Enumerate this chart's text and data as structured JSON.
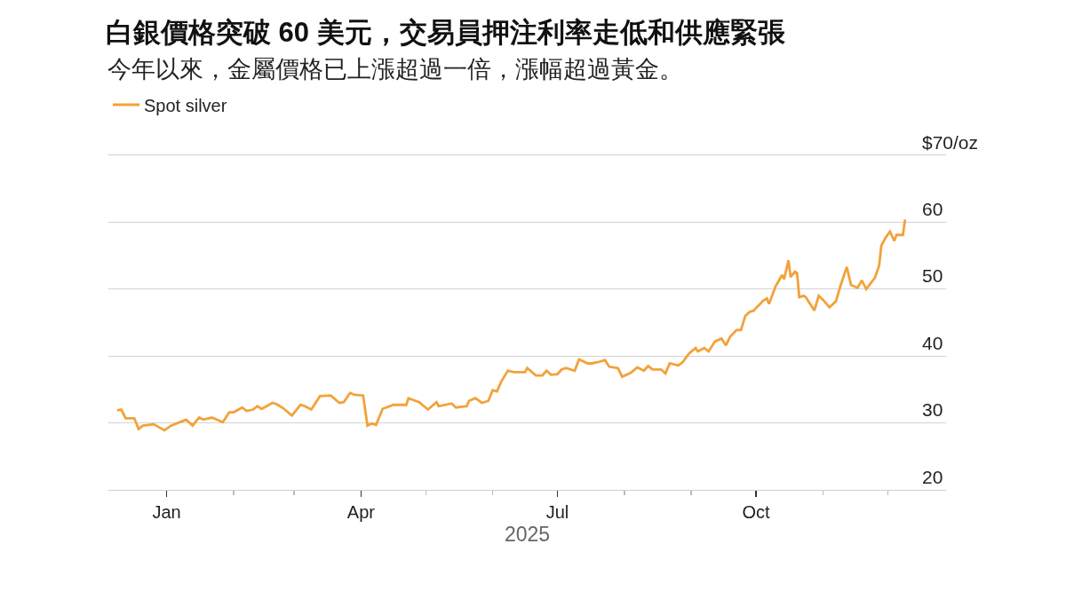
{
  "chart_data": {
    "type": "line",
    "title": "白銀價格突破 60 美元，交易員押注利率走低和供應緊張",
    "subtitle": "今年以來，金屬價格已上漲超過一倍，漲幅超過黃金。",
    "xlabel": "2025",
    "x": [
      "2024-12-09",
      "2024-12-11",
      "2024-12-13",
      "2024-12-17",
      "2024-12-19",
      "2024-12-21",
      "2024-12-26",
      "2024-12-31",
      "2025-01-03",
      "2025-01-10",
      "2025-01-13",
      "2025-01-16",
      "2025-01-18",
      "2025-01-22",
      "2025-01-27",
      "2025-01-30",
      "2025-02-01",
      "2025-02-05",
      "2025-02-07",
      "2025-02-10",
      "2025-02-12",
      "2025-02-14",
      "2025-02-19",
      "2025-02-21",
      "2025-02-24",
      "2025-02-28",
      "2025-03-04",
      "2025-03-06",
      "2025-03-09",
      "2025-03-13",
      "2025-03-18",
      "2025-03-22",
      "2025-03-24",
      "2025-03-27",
      "2025-03-29",
      "2025-04-02",
      "2025-04-04",
      "2025-04-06",
      "2025-04-08",
      "2025-04-11",
      "2025-04-16",
      "2025-04-22",
      "2025-04-23",
      "2025-04-28",
      "2025-05-02",
      "2025-05-06",
      "2025-05-07",
      "2025-05-13",
      "2025-05-15",
      "2025-05-20",
      "2025-05-21",
      "2025-05-24",
      "2025-05-27",
      "2025-05-30",
      "2025-06-01",
      "2025-06-03",
      "2025-06-05",
      "2025-06-08",
      "2025-06-11",
      "2025-06-16",
      "2025-06-17",
      "2025-06-21",
      "2025-06-24",
      "2025-06-26",
      "2025-06-28",
      "2025-07-01",
      "2025-07-03",
      "2025-07-05",
      "2025-07-09",
      "2025-07-11",
      "2025-07-15",
      "2025-07-17",
      "2025-07-20",
      "2025-07-23",
      "2025-07-25",
      "2025-07-29",
      "2025-07-31",
      "2025-08-04",
      "2025-08-07",
      "2025-08-10",
      "2025-08-12",
      "2025-08-14",
      "2025-08-18",
      "2025-08-20",
      "2025-08-22",
      "2025-08-26",
      "2025-08-28",
      "2025-08-31",
      "2025-09-03",
      "2025-09-04",
      "2025-09-07",
      "2025-09-09",
      "2025-09-12",
      "2025-09-15",
      "2025-09-17",
      "2025-09-19",
      "2025-09-22",
      "2025-09-24",
      "2025-09-26",
      "2025-09-28",
      "2025-09-30",
      "2025-10-01",
      "2025-10-03",
      "2025-10-04",
      "2025-10-06",
      "2025-10-07",
      "2025-10-10",
      "2025-10-13",
      "2025-10-14",
      "2025-10-16",
      "2025-10-17",
      "2025-10-19",
      "2025-10-20",
      "2025-10-21",
      "2025-10-23",
      "2025-10-24",
      "2025-10-28",
      "2025-10-30",
      "2025-11-01",
      "2025-11-04",
      "2025-11-07",
      "2025-11-09",
      "2025-11-12",
      "2025-11-14",
      "2025-11-17",
      "2025-11-19",
      "2025-11-21",
      "2025-11-25",
      "2025-11-27",
      "2025-11-28",
      "2025-11-30",
      "2025-12-02",
      "2025-12-04",
      "2025-12-05",
      "2025-12-08",
      "2025-12-09"
    ],
    "series": [
      {
        "name": "Spot silver",
        "color": "#f2a23a",
        "values": [
          31.9,
          32.0,
          30.7,
          30.7,
          29.1,
          29.6,
          29.8,
          28.9,
          29.6,
          30.5,
          29.6,
          30.8,
          30.5,
          30.8,
          30.1,
          31.6,
          31.6,
          32.3,
          31.8,
          32.0,
          32.5,
          32.1,
          33.0,
          32.8,
          32.2,
          31.1,
          32.7,
          32.5,
          32.0,
          34.0,
          34.1,
          33.0,
          33.1,
          34.5,
          34.2,
          34.1,
          29.6,
          29.9,
          29.7,
          32.1,
          32.7,
          32.7,
          33.7,
          33.1,
          32.0,
          33.1,
          32.5,
          32.9,
          32.3,
          32.5,
          33.3,
          33.7,
          33.0,
          33.3,
          34.9,
          34.7,
          36.2,
          37.8,
          37.6,
          37.6,
          38.2,
          37.1,
          37.1,
          37.8,
          37.2,
          37.3,
          38.0,
          38.2,
          37.8,
          39.5,
          38.9,
          38.9,
          39.1,
          39.4,
          38.4,
          38.2,
          36.9,
          37.5,
          38.3,
          37.8,
          38.5,
          38.0,
          38.0,
          37.4,
          38.9,
          38.6,
          39.1,
          40.4,
          41.2,
          40.7,
          41.2,
          40.7,
          42.2,
          42.6,
          41.6,
          42.9,
          43.9,
          43.9,
          46.0,
          46.6,
          46.8,
          47.2,
          47.8,
          48.2,
          48.6,
          47.8,
          50.4,
          52.1,
          51.5,
          54.3,
          51.8,
          52.6,
          52.4,
          48.8,
          49.0,
          48.8,
          46.8,
          49.0,
          48.4,
          47.3,
          48.2,
          50.4,
          53.3,
          50.6,
          50.2,
          51.3,
          50.0,
          51.7,
          53.5,
          56.5,
          57.7,
          58.6,
          57.2,
          58.1,
          58.1,
          60.4
        ]
      }
    ],
    "xlim": [
      "2024-12-05",
      "2025-12-28"
    ],
    "xticks": [
      {
        "value": "2025-01-01",
        "label": "Jan"
      },
      {
        "value": "2025-02-01",
        "label": null
      },
      {
        "value": "2025-03-01",
        "label": null
      },
      {
        "value": "2025-04-01",
        "label": "Apr"
      },
      {
        "value": "2025-05-01",
        "label": null
      },
      {
        "value": "2025-06-01",
        "label": null
      },
      {
        "value": "2025-07-01",
        "label": "Jul"
      },
      {
        "value": "2025-08-01",
        "label": null
      },
      {
        "value": "2025-09-01",
        "label": null
      },
      {
        "value": "2025-10-01",
        "label": "Oct"
      },
      {
        "value": "2025-11-01",
        "label": null
      },
      {
        "value": "2025-12-01",
        "label": null
      }
    ],
    "ylim": [
      20,
      70
    ],
    "yticks": [
      20,
      30,
      40,
      50,
      60,
      {
        "value": 70,
        "label": "$70/oz"
      }
    ],
    "grid": "y",
    "legend": "top left",
    "line_style": "solid"
  }
}
